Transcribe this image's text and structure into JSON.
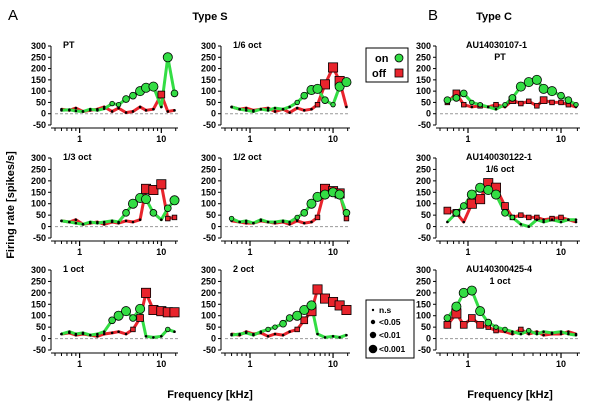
{
  "figure": {
    "label_a": "A",
    "label_b": "B",
    "title_a": "Type S",
    "title_b": "Type C",
    "ylabel": "Firing rate [spikes/s]",
    "xlabel": "Frequency [kHz]"
  },
  "legend": {
    "on_label": "on",
    "off_label": "off",
    "sig": [
      "n.s",
      "<0.05",
      "<0.01",
      "<0.001"
    ]
  },
  "colors": {
    "on": "#33dd44",
    "off": "#e8242c",
    "zero_line": "#999999"
  },
  "chart_data": [
    {
      "type": "line",
      "label": "PT",
      "xscale": "log",
      "ylim": [
        -50,
        300
      ],
      "yticks": [
        -50,
        0,
        50,
        100,
        150,
        200,
        250,
        300
      ],
      "xticks": [
        1,
        10
      ],
      "series": [
        {
          "name": "on",
          "x": [
            0.6,
            0.75,
            0.9,
            1.1,
            1.35,
            1.65,
            2.0,
            2.5,
            3.0,
            3.7,
            4.5,
            5.5,
            6.5,
            8,
            10,
            12,
            14.5
          ],
          "y": [
            15,
            18,
            12,
            10,
            20,
            15,
            22,
            45,
            40,
            65,
            80,
            100,
            115,
            120,
            30,
            250,
            90
          ]
        },
        {
          "name": "off",
          "x": [
            0.6,
            0.75,
            0.9,
            1.1,
            1.35,
            1.65,
            2.0,
            2.5,
            3.0,
            3.7,
            4.5,
            5.5,
            6.5,
            8,
            10,
            12,
            14.5
          ],
          "y": [
            20,
            15,
            25,
            10,
            15,
            20,
            30,
            10,
            25,
            5,
            10,
            30,
            15,
            20,
            85,
            10,
            15
          ]
        }
      ]
    },
    {
      "type": "line",
      "label": "1/6 oct",
      "xscale": "log",
      "ylim": [
        -50,
        300
      ],
      "yticks": [
        -50,
        0,
        50,
        100,
        150,
        200,
        250,
        300
      ],
      "xticks": [
        1,
        10
      ],
      "series": [
        {
          "name": "on",
          "x": [
            0.6,
            0.75,
            0.9,
            1.1,
            1.35,
            1.65,
            2.0,
            2.5,
            3.0,
            3.7,
            4.5,
            5.5,
            6.5,
            8,
            10,
            12,
            14.5
          ],
          "y": [
            30,
            20,
            15,
            10,
            20,
            15,
            25,
            20,
            30,
            50,
            80,
            105,
            110,
            60,
            40,
            120,
            140
          ]
        },
        {
          "name": "off",
          "x": [
            0.6,
            0.75,
            0.9,
            1.1,
            1.35,
            1.65,
            2.0,
            2.5,
            3.0,
            3.7,
            4.5,
            5.5,
            6.5,
            8,
            10,
            12,
            14.5
          ],
          "y": [
            30,
            20,
            25,
            15,
            20,
            25,
            10,
            20,
            5,
            25,
            15,
            20,
            40,
            130,
            205,
            145,
            30
          ]
        }
      ]
    },
    {
      "type": "line",
      "label": "1/3 oct",
      "xscale": "log",
      "ylim": [
        -50,
        300
      ],
      "yticks": [
        -50,
        0,
        50,
        100,
        150,
        200,
        250,
        300
      ],
      "xticks": [
        1,
        10
      ],
      "series": [
        {
          "name": "on",
          "x": [
            0.6,
            0.75,
            0.9,
            1.1,
            1.35,
            1.65,
            2.0,
            2.5,
            3.0,
            3.7,
            4.5,
            5.5,
            6.5,
            8,
            10,
            12,
            14.5
          ],
          "y": [
            25,
            20,
            15,
            10,
            20,
            15,
            20,
            25,
            20,
            60,
            100,
            125,
            120,
            60,
            30,
            80,
            115
          ]
        },
        {
          "name": "off",
          "x": [
            0.6,
            0.75,
            0.9,
            1.1,
            1.35,
            1.65,
            2.0,
            2.5,
            3.0,
            3.7,
            4.5,
            5.5,
            6.5,
            8,
            10,
            12,
            14.5
          ],
          "y": [
            25,
            20,
            30,
            10,
            15,
            20,
            10,
            20,
            15,
            25,
            20,
            30,
            165,
            160,
            185,
            35,
            40
          ]
        }
      ]
    },
    {
      "type": "line",
      "label": "1/2 oct",
      "xscale": "log",
      "ylim": [
        -50,
        300
      ],
      "yticks": [
        -50,
        0,
        50,
        100,
        150,
        200,
        250,
        300
      ],
      "xticks": [
        1,
        10
      ],
      "series": [
        {
          "name": "on",
          "x": [
            0.6,
            0.75,
            0.9,
            1.1,
            1.35,
            1.65,
            2.0,
            2.5,
            3.0,
            3.7,
            4.5,
            5.5,
            6.5,
            8,
            10,
            12,
            14.5
          ],
          "y": [
            35,
            20,
            25,
            15,
            30,
            20,
            20,
            25,
            20,
            40,
            60,
            100,
            130,
            140,
            150,
            140,
            60
          ]
        },
        {
          "name": "off",
          "x": [
            0.6,
            0.75,
            0.9,
            1.1,
            1.35,
            1.65,
            2.0,
            2.5,
            3.0,
            3.7,
            4.5,
            5.5,
            6.5,
            8,
            10,
            12,
            14.5
          ],
          "y": [
            25,
            20,
            15,
            15,
            25,
            20,
            15,
            20,
            10,
            25,
            15,
            20,
            40,
            165,
            155,
            145,
            35
          ]
        }
      ]
    },
    {
      "type": "line",
      "label": "1 oct",
      "xscale": "log",
      "ylim": [
        -50,
        300
      ],
      "yticks": [
        -50,
        0,
        50,
        100,
        150,
        200,
        250,
        300
      ],
      "xticks": [
        1,
        10
      ],
      "series": [
        {
          "name": "on",
          "x": [
            0.6,
            0.75,
            0.9,
            1.1,
            1.35,
            1.65,
            2.0,
            2.5,
            3.0,
            3.7,
            4.5,
            5.5,
            6.5,
            8,
            10,
            12,
            14.5
          ],
          "y": [
            20,
            30,
            20,
            25,
            15,
            20,
            30,
            80,
            100,
            120,
            90,
            130,
            10,
            5,
            10,
            40,
            30
          ]
        },
        {
          "name": "off",
          "x": [
            0.6,
            0.75,
            0.9,
            1.1,
            1.35,
            1.65,
            2.0,
            2.5,
            3.0,
            3.7,
            4.5,
            5.5,
            6.5,
            8,
            10,
            12,
            14.5
          ],
          "y": [
            20,
            25,
            15,
            20,
            15,
            10,
            20,
            25,
            30,
            20,
            40,
            90,
            200,
            125,
            120,
            115,
            115
          ]
        }
      ]
    },
    {
      "type": "line",
      "label": "2 oct",
      "xscale": "log",
      "ylim": [
        -50,
        300
      ],
      "yticks": [
        -50,
        0,
        50,
        100,
        150,
        200,
        250,
        300
      ],
      "xticks": [
        1,
        10
      ],
      "series": [
        {
          "name": "on",
          "x": [
            0.6,
            0.75,
            0.9,
            1.1,
            1.35,
            1.65,
            2.0,
            2.5,
            3.0,
            3.7,
            4.5,
            5.5,
            6.5,
            8,
            10,
            12,
            14.5
          ],
          "y": [
            15,
            20,
            25,
            15,
            30,
            40,
            50,
            65,
            90,
            100,
            125,
            145,
            20,
            5,
            10,
            5,
            15
          ]
        },
        {
          "name": "off",
          "x": [
            0.6,
            0.75,
            0.9,
            1.1,
            1.35,
            1.65,
            2.0,
            2.5,
            3.0,
            3.7,
            4.5,
            5.5,
            6.5,
            8,
            10,
            12,
            14.5
          ],
          "y": [
            20,
            15,
            30,
            20,
            25,
            10,
            20,
            15,
            30,
            40,
            80,
            120,
            215,
            175,
            160,
            145,
            125
          ]
        }
      ]
    },
    {
      "type": "line",
      "label": "AU14030107-1",
      "sublabel": "PT",
      "xscale": "log",
      "ylim": [
        -50,
        300
      ],
      "yticks": [
        -50,
        0,
        50,
        100,
        150,
        200,
        250,
        300
      ],
      "xticks": [
        1,
        10
      ],
      "series": [
        {
          "name": "on",
          "x": [
            0.6,
            0.75,
            0.9,
            1.1,
            1.35,
            1.65,
            2.0,
            2.5,
            3.0,
            3.7,
            4.5,
            5.5,
            6.5,
            8,
            10,
            12,
            14.5
          ],
          "y": [
            60,
            70,
            90,
            50,
            40,
            30,
            20,
            40,
            70,
            120,
            140,
            150,
            110,
            100,
            80,
            60,
            40
          ]
        },
        {
          "name": "off",
          "x": [
            0.6,
            0.75,
            0.9,
            1.1,
            1.35,
            1.65,
            2.0,
            2.5,
            3.0,
            3.7,
            4.5,
            5.5,
            6.5,
            8,
            10,
            12,
            14.5
          ],
          "y": [
            50,
            90,
            40,
            30,
            35,
            30,
            40,
            30,
            60,
            45,
            55,
            35,
            60,
            50,
            50,
            40,
            30
          ]
        }
      ]
    },
    {
      "type": "line",
      "label": "AU140030122-1",
      "sublabel": "1/6 oct",
      "xscale": "log",
      "ylim": [
        -50,
        300
      ],
      "yticks": [
        -50,
        0,
        50,
        100,
        150,
        200,
        250,
        300
      ],
      "xticks": [
        1,
        10
      ],
      "series": [
        {
          "name": "on",
          "x": [
            0.6,
            0.75,
            0.9,
            1.1,
            1.35,
            1.65,
            2.0,
            2.5,
            3.0,
            3.7,
            4.5,
            5.5,
            6.5,
            8,
            10,
            12,
            14.5
          ],
          "y": [
            20,
            60,
            90,
            140,
            170,
            160,
            140,
            60,
            40,
            10,
            0,
            30,
            20,
            30,
            20,
            30,
            30
          ]
        },
        {
          "name": "off",
          "x": [
            0.6,
            0.75,
            0.9,
            1.1,
            1.35,
            1.65,
            2.0,
            2.5,
            3.0,
            3.7,
            4.5,
            5.5,
            6.5,
            8,
            10,
            12,
            14.5
          ],
          "y": [
            70,
            60,
            20,
            100,
            120,
            190,
            170,
            90,
            40,
            50,
            40,
            40,
            30,
            35,
            40,
            30,
            20
          ]
        }
      ]
    },
    {
      "type": "line",
      "label": "AU140300425-4",
      "sublabel": "1 oct",
      "xscale": "log",
      "ylim": [
        -50,
        300
      ],
      "yticks": [
        -50,
        0,
        50,
        100,
        150,
        200,
        250,
        300
      ],
      "xticks": [
        1,
        10
      ],
      "series": [
        {
          "name": "on",
          "x": [
            0.6,
            0.75,
            0.9,
            1.1,
            1.35,
            1.65,
            2.0,
            2.5,
            3.0,
            3.7,
            4.5,
            5.5,
            6.5,
            8,
            10,
            12,
            14.5
          ],
          "y": [
            90,
            140,
            200,
            210,
            120,
            70,
            50,
            40,
            30,
            20,
            35,
            20,
            30,
            25,
            30,
            20,
            15
          ]
        },
        {
          "name": "off",
          "x": [
            0.6,
            0.75,
            0.9,
            1.1,
            1.35,
            1.65,
            2.0,
            2.5,
            3.0,
            3.7,
            4.5,
            5.5,
            6.5,
            8,
            10,
            12,
            14.5
          ],
          "y": [
            60,
            110,
            60,
            90,
            60,
            50,
            35,
            30,
            20,
            40,
            20,
            30,
            15,
            20,
            20,
            30,
            20
          ]
        }
      ]
    }
  ]
}
